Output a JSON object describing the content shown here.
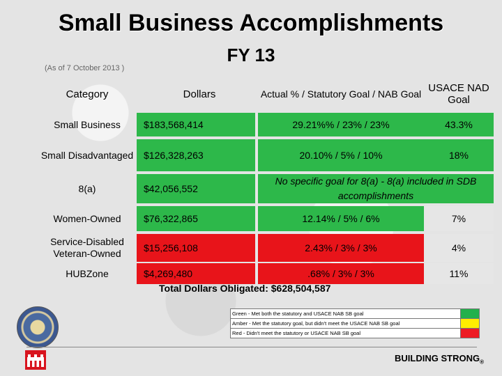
{
  "header": {
    "title": "Small Business Accomplishments",
    "fiscal_year": "FY 13",
    "as_of": "(As of 7 October 2013 )"
  },
  "table": {
    "columns": [
      "Category",
      "Dollars",
      "Actual % / Statutory Goal / NAB Goal",
      "USACE NAD Goal"
    ],
    "rows": [
      {
        "category": "Small Business",
        "dollars": "$183,568,414",
        "actual": "29.21%% / 23% / 23%",
        "nad_goal": "43.3%",
        "status": "green"
      },
      {
        "category": "Small Disadvantaged",
        "dollars": "$126,328,263",
        "actual": "20.10% / 5% / 10%",
        "nad_goal": "18%",
        "status": "green"
      },
      {
        "category": "8(a)",
        "dollars": "$42,056,552",
        "note": "No specific goal for 8(a) - 8(a) included in SDB accomplishments",
        "status": "green"
      },
      {
        "category": "Women-Owned",
        "dollars": "$76,322,865",
        "actual": "12.14% / 5% / 6%",
        "nad_goal": "7%",
        "status": "green"
      },
      {
        "category": "Service-Disabled Veteran-Owned",
        "dollars": "$15,256,108",
        "actual": "2.43% / 3% / 3%",
        "nad_goal": "4%",
        "status": "red"
      },
      {
        "category": "HUBZone",
        "dollars": "$4,269,480",
        "actual": ".68% / 3% / 3%",
        "nad_goal": "11%",
        "status": "red"
      }
    ]
  },
  "total": "Total Dollars Obligated: $628,504,587",
  "legend": [
    {
      "text": "Green - Met both the statutory and USACE NAB SB goal",
      "color": "#22b14c"
    },
    {
      "text": "Amber - Met the statutory goal, but didn't meet the USACE NAB SB goal",
      "color": "#ffee00"
    },
    {
      "text": "Red - Didn't meet the statutory or USACE NAB SB goal",
      "color": "#ed1c24"
    }
  ],
  "footer": {
    "brand": "BUILDING STRONG",
    "reg_mark": "®"
  },
  "icons": [
    "district-seal-icon",
    "castle-logo-icon"
  ]
}
